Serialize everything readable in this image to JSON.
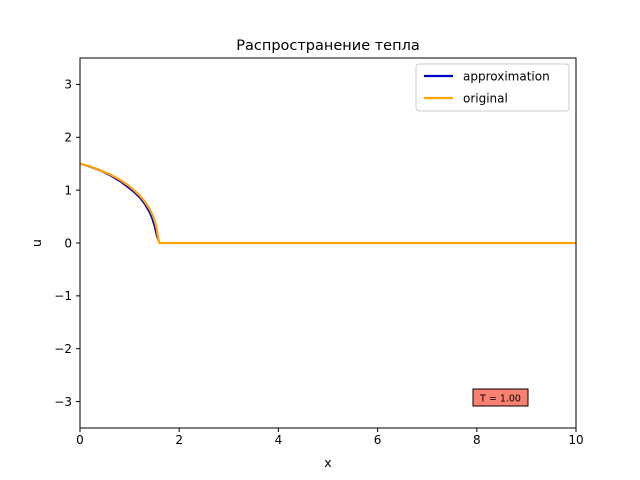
{
  "chart_data": {
    "type": "line",
    "title": "Распространение тепла",
    "xlabel": "x",
    "ylabel": "u",
    "xlim": [
      0,
      10
    ],
    "ylim": [
      -3.5,
      3.5
    ],
    "xticks": [
      0,
      2,
      4,
      6,
      8,
      10
    ],
    "yticks": [
      -3,
      -2,
      -1,
      0,
      1,
      2,
      3
    ],
    "tick_labels_x": [
      "0",
      "2",
      "4",
      "6",
      "8",
      "10"
    ],
    "tick_labels_y": [
      "−3",
      "−2",
      "−1",
      "0",
      "1",
      "2",
      "3"
    ],
    "grid": false,
    "legend_position": "top-right",
    "series": [
      {
        "name": "approximation",
        "color": "#0000cc",
        "x": [
          0,
          0.2,
          0.4,
          0.6,
          0.8,
          1.0,
          1.1,
          1.2,
          1.3,
          1.4,
          1.45,
          1.5,
          1.55,
          1.6,
          1.65,
          2,
          4,
          6,
          8,
          10
        ],
        "y": [
          1.5,
          1.44,
          1.37,
          1.28,
          1.17,
          1.03,
          0.95,
          0.86,
          0.74,
          0.58,
          0.47,
          0.32,
          0.12,
          0.0,
          0.0,
          0,
          0,
          0,
          0,
          0
        ]
      },
      {
        "name": "original",
        "color": "#ffa500",
        "x": [
          0,
          0.2,
          0.4,
          0.6,
          0.8,
          1.0,
          1.1,
          1.2,
          1.3,
          1.4,
          1.45,
          1.5,
          1.53,
          1.55,
          1.57,
          1.6,
          2,
          4,
          6,
          8,
          10
        ],
        "y": [
          1.5,
          1.45,
          1.38,
          1.3,
          1.2,
          1.07,
          0.99,
          0.9,
          0.79,
          0.65,
          0.56,
          0.44,
          0.34,
          0.25,
          0.12,
          0.0,
          0,
          0,
          0,
          0,
          0
        ]
      }
    ],
    "annotation": {
      "text": "T = 1.00",
      "x": 8.0,
      "y": -3.0,
      "background": "#fa8072"
    }
  }
}
